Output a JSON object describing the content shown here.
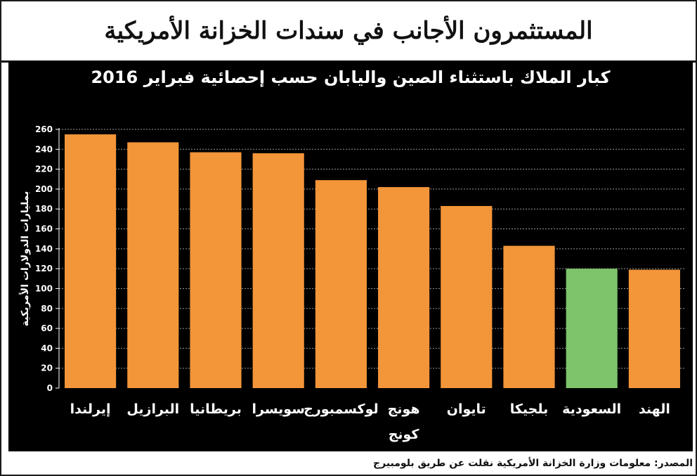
{
  "header": {
    "title": "المستثمرون الأجانب في سندات الخزانة الأمريكية"
  },
  "footer": {
    "source": "المصدر: معلومات وزارة الخزانة الأمريكية نقلت عن طريق بلومبيرج"
  },
  "colors": {
    "bar_default": "#f39539",
    "bar_highlight": "#7ec46a",
    "background": "#000000",
    "gridline": "#9a9a9a",
    "text": "#ffffff"
  },
  "chart_data": {
    "type": "bar",
    "title": "كبار الملاك باستثناء الصين واليابان حسب إحصائية فبراير 2016",
    "ylabel": "بمليارات الدولارات الأمريكية",
    "xlabel": "",
    "ylim": [
      0,
      260
    ],
    "yticks": [
      0,
      20,
      40,
      60,
      80,
      100,
      120,
      140,
      160,
      180,
      200,
      220,
      240,
      260
    ],
    "grid": true,
    "categories": [
      "إيرلندا",
      "البرازيل",
      "بريطانيا",
      "سويسرا",
      "لوكسمبورج",
      "هونج كونج",
      "تايوان",
      "بلجيكا",
      "السعودية",
      "الهند"
    ],
    "values": [
      255,
      247,
      237,
      236,
      209,
      202,
      183,
      143,
      120,
      119
    ],
    "highlight": [
      "السعودية"
    ]
  }
}
